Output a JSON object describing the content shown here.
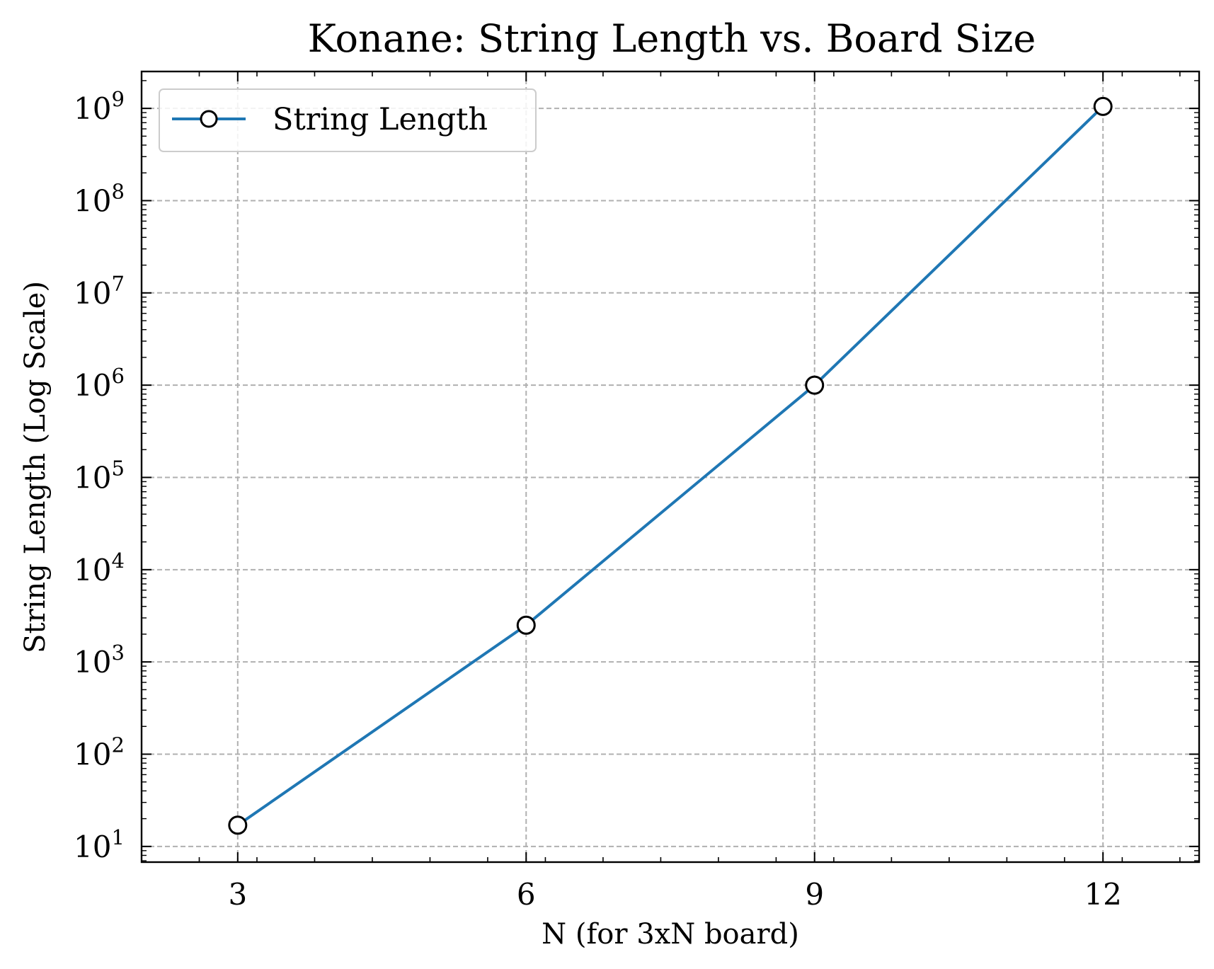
{
  "chart_data": {
    "type": "line",
    "title": "Konane: String Length vs. Board Size",
    "xlabel": "N (for 3xN board)",
    "ylabel": "String Length (Log Scale)",
    "yscale": "log",
    "xlim": [
      2.0,
      13.0
    ],
    "ylim_exp": [
      0.83,
      9.4
    ],
    "xticks": [
      3,
      6,
      9,
      12
    ],
    "xtick_labels": [
      "3",
      "6",
      "9",
      "12"
    ],
    "yticks_exp": [
      1,
      2,
      3,
      4,
      5,
      6,
      7,
      8,
      9
    ],
    "ytick_base": "10",
    "ytick_exponents": [
      "1",
      "2",
      "3",
      "4",
      "5",
      "6",
      "7",
      "8",
      "9"
    ],
    "grid": true,
    "legend_position": "top-left",
    "legend_label": "String Length",
    "series": [
      {
        "name": "String Length",
        "color": "#1f77b4",
        "marker": "open-circle",
        "x": [
          3,
          6,
          9,
          12
        ],
        "y": [
          17,
          2500,
          1000000,
          1050000000
        ]
      }
    ]
  }
}
